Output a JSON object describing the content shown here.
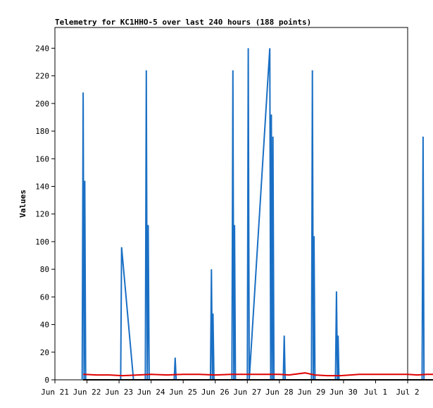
{
  "chart_data": {
    "type": "line",
    "title": "Telemetry for KC1HHO-5 over last 240 hours (188 points)",
    "ylabel": "Values",
    "xlabel": "",
    "ylim": [
      0,
      255
    ],
    "yticks": [
      0,
      20,
      40,
      60,
      80,
      100,
      120,
      140,
      160,
      180,
      200,
      220,
      240
    ],
    "xlim": [
      "Jun 21",
      "Jul 2"
    ],
    "xtick_labels": [
      "Jun 21",
      "Jun 22",
      "Jun 23",
      "Jun 24",
      "Jun 25",
      "Jun 26",
      "Jun 27",
      "Jun 28",
      "Jun 29",
      "Jun 30",
      "Jul 1",
      "Jul 2"
    ],
    "grid": false,
    "series": [
      {
        "color": "#1a6fc4",
        "points": [
          [
            0.85,
            0
          ],
          [
            0.88,
            208
          ],
          [
            0.91,
            0
          ],
          [
            0.93,
            144
          ],
          [
            0.96,
            0
          ],
          [
            2.05,
            0
          ],
          [
            2.08,
            96
          ],
          [
            2.45,
            0
          ],
          [
            2.82,
            0
          ],
          [
            2.85,
            224
          ],
          [
            2.88,
            0
          ],
          [
            2.91,
            112
          ],
          [
            2.94,
            0
          ],
          [
            3.72,
            0
          ],
          [
            3.75,
            16
          ],
          [
            3.78,
            0
          ],
          [
            4.85,
            0
          ],
          [
            4.88,
            80
          ],
          [
            4.91,
            0
          ],
          [
            4.93,
            48
          ],
          [
            4.96,
            0
          ],
          [
            5.52,
            0
          ],
          [
            5.55,
            224
          ],
          [
            5.58,
            0
          ],
          [
            5.6,
            112
          ],
          [
            5.63,
            0
          ],
          [
            6.0,
            0
          ],
          [
            6.03,
            240
          ],
          [
            6.06,
            0
          ],
          [
            6.7,
            240
          ],
          [
            6.73,
            0
          ],
          [
            6.75,
            192
          ],
          [
            6.78,
            0
          ],
          [
            6.8,
            176
          ],
          [
            6.83,
            0
          ],
          [
            7.12,
            0
          ],
          [
            7.15,
            32
          ],
          [
            7.18,
            0
          ],
          [
            8.0,
            0
          ],
          [
            8.03,
            224
          ],
          [
            8.06,
            0
          ],
          [
            8.08,
            104
          ],
          [
            8.11,
            0
          ],
          [
            8.75,
            0
          ],
          [
            8.78,
            64
          ],
          [
            8.81,
            0
          ],
          [
            8.83,
            32
          ],
          [
            8.86,
            0
          ],
          [
            11.45,
            0
          ],
          [
            11.48,
            176
          ],
          [
            11.51,
            0
          ]
        ]
      },
      {
        "color": "#e00000",
        "points": [
          [
            0.88,
            4
          ],
          [
            1.3,
            3.5
          ],
          [
            1.7,
            3.5
          ],
          [
            2.1,
            3
          ],
          [
            2.6,
            3.5
          ],
          [
            3.0,
            4
          ],
          [
            3.5,
            3.5
          ],
          [
            4.0,
            4
          ],
          [
            4.5,
            4
          ],
          [
            5.0,
            3.5
          ],
          [
            5.5,
            4
          ],
          [
            6.0,
            4
          ],
          [
            6.5,
            4
          ],
          [
            7.0,
            4
          ],
          [
            7.3,
            3.5
          ],
          [
            7.8,
            5
          ],
          [
            8.1,
            3.5
          ],
          [
            8.5,
            3
          ],
          [
            8.9,
            3
          ],
          [
            9.5,
            4
          ],
          [
            10.0,
            4
          ],
          [
            10.5,
            4
          ],
          [
            11.0,
            4
          ],
          [
            11.3,
            3.5
          ],
          [
            11.6,
            4
          ],
          [
            12.0,
            4
          ],
          [
            12.28,
            5
          ]
        ]
      },
      {
        "color": "#000000",
        "points": [
          [
            0.88,
            0
          ],
          [
            12.28,
            0
          ]
        ]
      }
    ]
  }
}
